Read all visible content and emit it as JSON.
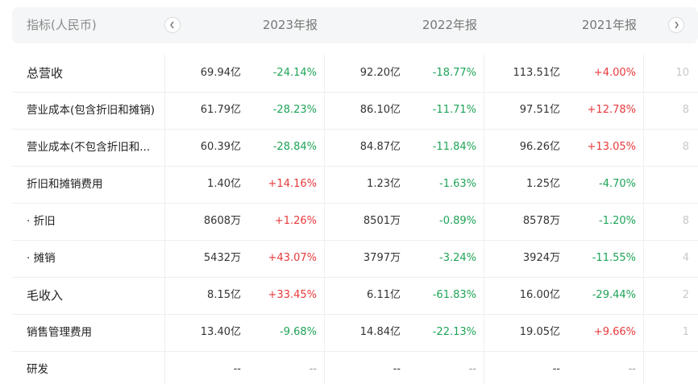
{
  "header": {
    "label": "指标(人民币)",
    "years": [
      "2023年报",
      "2022年报",
      "2021年报"
    ]
  },
  "rows": [
    {
      "name": "总营收",
      "v1": "69.94亿",
      "p1": "-24.14%",
      "v2": "92.20亿",
      "p2": "-18.77%",
      "v3": "113.51亿",
      "p3": "+4.00%",
      "cut": "10"
    },
    {
      "name": "营业成本(包含折旧和摊销)",
      "v1": "61.79亿",
      "p1": "-28.23%",
      "v2": "86.10亿",
      "p2": "-11.71%",
      "v3": "97.51亿",
      "p3": "+12.78%",
      "cut": "8"
    },
    {
      "name": "营业成本(不包含折旧和...",
      "v1": "60.39亿",
      "p1": "-28.84%",
      "v2": "84.87亿",
      "p2": "-11.84%",
      "v3": "96.26亿",
      "p3": "+13.05%",
      "cut": "8"
    },
    {
      "name": "折旧和摊销费用",
      "v1": "1.40亿",
      "p1": "+14.16%",
      "v2": "1.23亿",
      "p2": "-1.63%",
      "v3": "1.25亿",
      "p3": "-4.70%",
      "cut": ""
    },
    {
      "name": "· 折旧",
      "v1": "8608万",
      "p1": "+1.26%",
      "v2": "8501万",
      "p2": "-0.89%",
      "v3": "8578万",
      "p3": "-1.20%",
      "cut": "8"
    },
    {
      "name": "· 摊销",
      "v1": "5432万",
      "p1": "+43.07%",
      "v2": "3797万",
      "p2": "-3.24%",
      "v3": "3924万",
      "p3": "-11.55%",
      "cut": "4"
    },
    {
      "name": "毛收入",
      "v1": "8.15亿",
      "p1": "+33.45%",
      "v2": "6.11亿",
      "p2": "-61.83%",
      "v3": "16.00亿",
      "p3": "-29.44%",
      "cut": "2"
    },
    {
      "name": "销售管理费用",
      "v1": "13.40亿",
      "p1": "-9.68%",
      "v2": "14.84亿",
      "p2": "-22.13%",
      "v3": "19.05亿",
      "p3": "+9.66%",
      "cut": "1"
    },
    {
      "name": "研发",
      "v1": "--",
      "p1": "--",
      "v2": "--",
      "p2": "--",
      "v3": "--",
      "p3": "--",
      "cut": ""
    }
  ],
  "colors": {
    "up": "#e8393b",
    "down": "#1fa458"
  },
  "icons": {
    "prev": "chevron-left-icon",
    "next": "chevron-right-icon"
  }
}
